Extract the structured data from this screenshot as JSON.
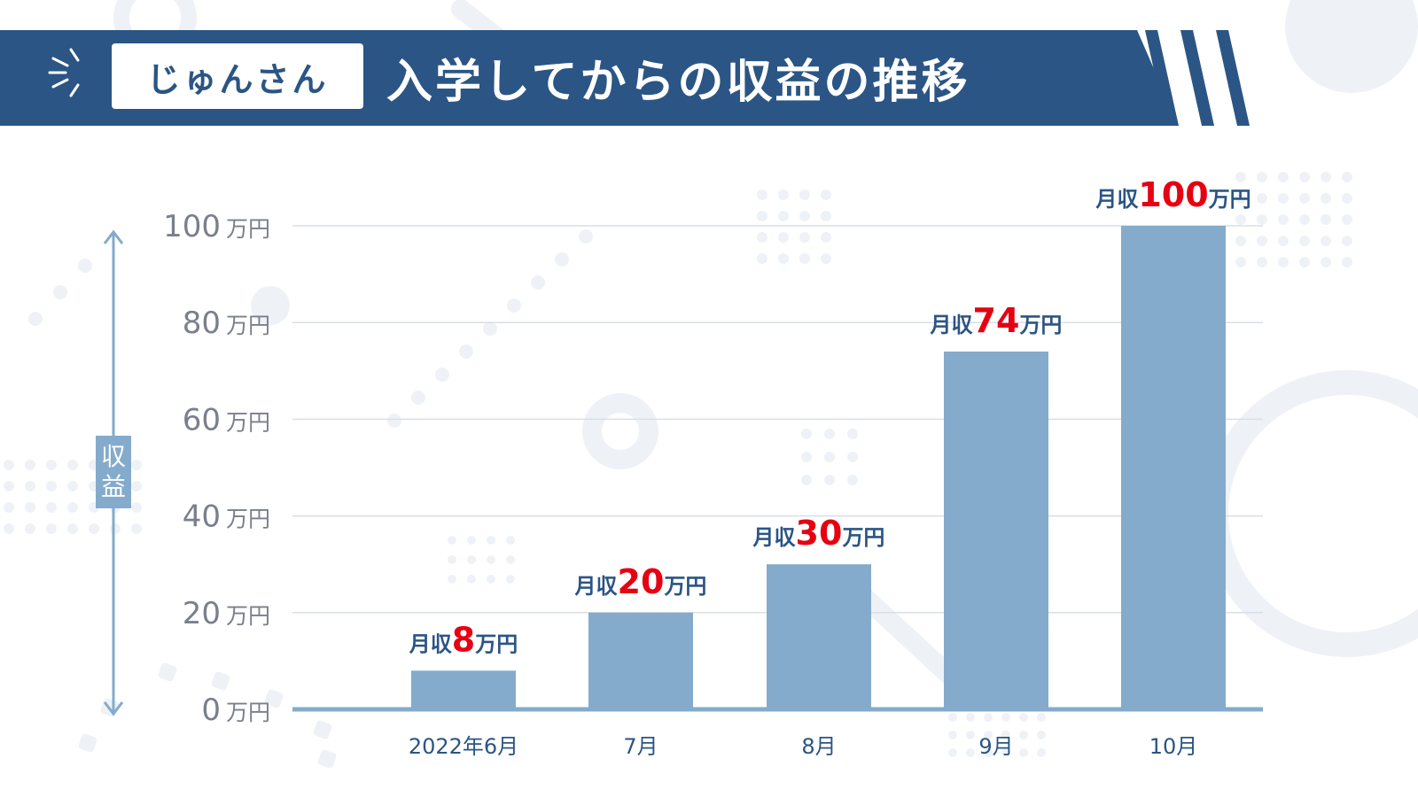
{
  "header": {
    "name_label": "じゅんさん",
    "title": "入学してからの収益の推移"
  },
  "colors": {
    "banner": "#2b5584",
    "bar": "#84abcc",
    "axis": "#84abcc",
    "grid": "#d9dfe6",
    "tick_label": "#7a7f8c",
    "value_label": "#2b5584",
    "value_number": "#e60012",
    "decoration": "#eef2f7"
  },
  "chart_data": {
    "type": "bar",
    "categories": [
      "2022年6月",
      "7月",
      "8月",
      "9月",
      "10月"
    ],
    "values": [
      8,
      20,
      30,
      74,
      100
    ],
    "value_prefix": "月収",
    "value_suffix": "万円",
    "ylabel": "収益",
    "ylim": [
      0,
      100
    ],
    "yticks": [
      0,
      20,
      40,
      60,
      80,
      100
    ],
    "ytick_unit": "万円",
    "grid": true,
    "legend": "none"
  }
}
